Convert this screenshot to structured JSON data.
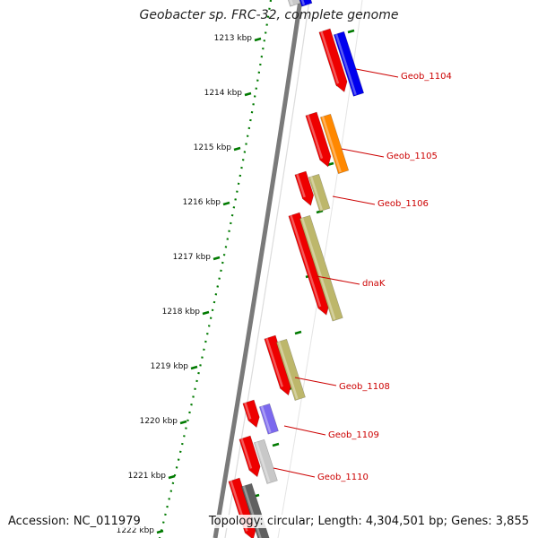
{
  "title": "Geobacter sp. FRC-32, complete genome",
  "accession": "Accession: NC_011979",
  "summary": "Topology: circular; Length: 4,304,501 bp; Genes: 3,855",
  "kbp_ticks": [
    "1213 kbp",
    "1214 kbp",
    "1215 kbp",
    "1216 kbp",
    "1217 kbp",
    "1218 kbp",
    "1219 kbp",
    "1220 kbp",
    "1221 kbp",
    "1222 kbp"
  ],
  "gene_labels": [
    "Geob_1104",
    "Geob_1105",
    "Geob_1106",
    "dnaK",
    "Geob_1108",
    "Geob_1109",
    "Geob_1110"
  ],
  "colors": {
    "forward_cds": "#ee0000",
    "track_grey": "#888888",
    "tick_green": "#007a00",
    "label_red": "#cc0000",
    "blue": "#0000ee",
    "orange": "#ff8800",
    "khaki": "#bdb76b",
    "violet": "#7b68ee",
    "light_grey": "#c8c8c8",
    "dark_grey": "#606060"
  }
}
